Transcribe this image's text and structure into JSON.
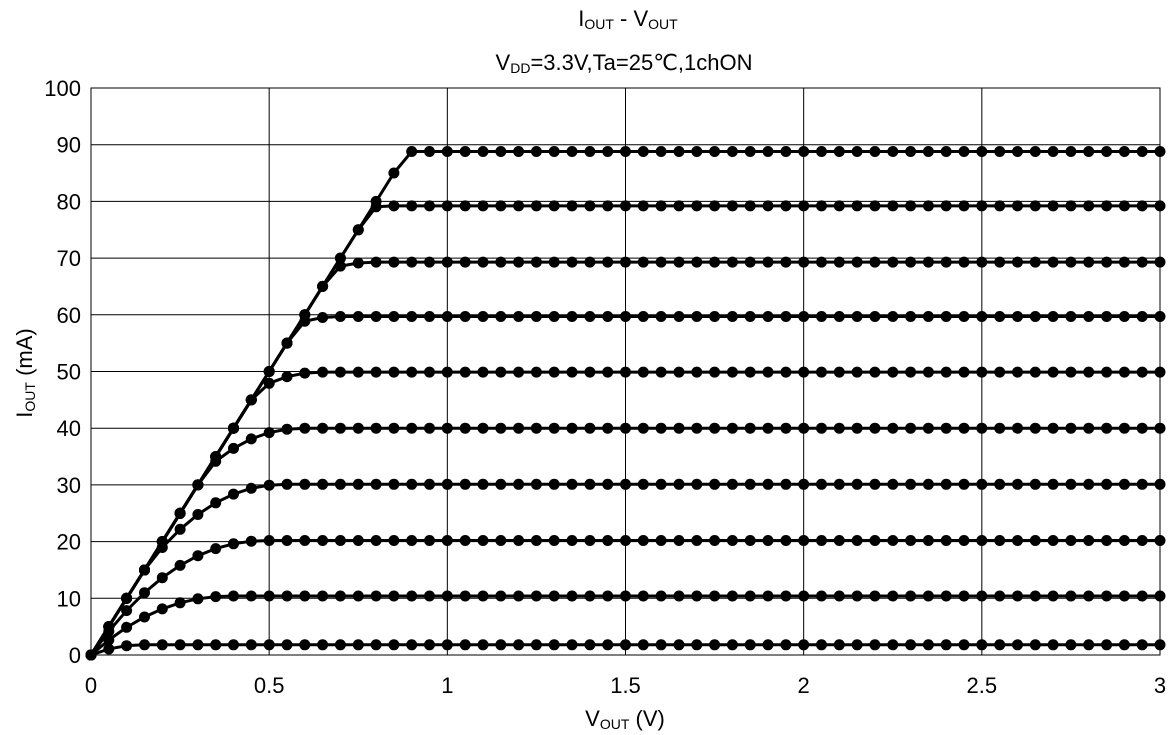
{
  "chart_data": {
    "type": "line",
    "title_line1": {
      "main": "I",
      "sub": "OUT",
      "rest": " - V",
      "sub2": "OUT"
    },
    "title_line2": {
      "main": "V",
      "sub": "DD",
      "rest": "=3.3V,Ta=25℃,1chON"
    },
    "xlabel": {
      "main": "V",
      "sub": "OUT",
      "rest": " (V)"
    },
    "ylabel": {
      "main": "I",
      "sub": "OUT",
      "rest": " (mA)"
    },
    "xlim": [
      0,
      3
    ],
    "ylim": [
      0,
      100
    ],
    "x_ticks": [
      "0",
      "0.5",
      "1",
      "1.5",
      "2",
      "2.5",
      "3"
    ],
    "y_ticks": [
      "0",
      "10",
      "20",
      "30",
      "40",
      "50",
      "60",
      "70",
      "80",
      "90",
      "100"
    ],
    "grid": true,
    "marker": "filled-circle",
    "line_color": "#000000",
    "x_step": 0.05,
    "series": [
      {
        "saturation_current": 1.8,
        "knee_voltage": 0.15,
        "initial_slope": 100
      },
      {
        "saturation_current": 10.4,
        "knee_voltage": 0.4,
        "initial_slope": 100
      },
      {
        "saturation_current": 20.2,
        "knee_voltage": 0.5,
        "initial_slope": 100
      },
      {
        "saturation_current": 30.1,
        "knee_voltage": 0.55,
        "initial_slope": 100
      },
      {
        "saturation_current": 40.0,
        "knee_voltage": 0.6,
        "initial_slope": 100
      },
      {
        "saturation_current": 49.9,
        "knee_voltage": 0.65,
        "initial_slope": 100
      },
      {
        "saturation_current": 59.7,
        "knee_voltage": 0.7,
        "initial_slope": 100
      },
      {
        "saturation_current": 69.3,
        "knee_voltage": 0.8,
        "initial_slope": 100
      },
      {
        "saturation_current": 79.2,
        "knee_voltage": 0.85,
        "initial_slope": 100
      },
      {
        "saturation_current": 88.8,
        "knee_voltage": 0.9,
        "initial_slope": 100
      }
    ]
  }
}
